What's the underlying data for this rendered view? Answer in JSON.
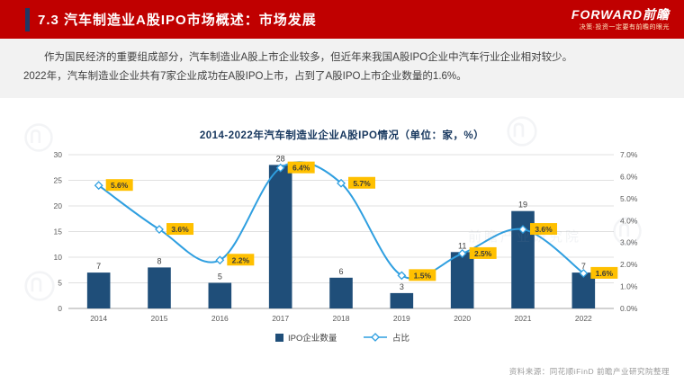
{
  "header": {
    "title": "7.3 汽车制造业A股IPO市场概述：市场发展",
    "brand": "FORWARD前瞻",
    "slogan": "决策·投资一定要有前瞻的眼光",
    "accent_color": "#c00000"
  },
  "intro": {
    "lines": [
      "作为国民经济的重要组成部分，汽车制造业A股上市企业较多，但近年来我国A股IPO企业中汽车行业企业相对较少。",
      "2022年，汽车制造业企业共有7家企业成功在A股IPO上市，占到了A股IPO上市企业数量的1.6%。"
    ]
  },
  "chart_data": {
    "type": "bar+line",
    "title": "2014-2022年汽车制造业企业A股IPO情况（单位：家，%）",
    "categories": [
      "2014",
      "2015",
      "2016",
      "2017",
      "2018",
      "2019",
      "2020",
      "2021",
      "2022"
    ],
    "series": [
      {
        "name": "IPO企业数量",
        "type": "bar",
        "axis": "left",
        "values": [
          7,
          8,
          5,
          28,
          6,
          3,
          11,
          19,
          7
        ],
        "color": "#1f4e79"
      },
      {
        "name": "占比",
        "type": "line",
        "axis": "right",
        "values": [
          5.6,
          3.6,
          2.2,
          6.4,
          5.7,
          1.5,
          2.5,
          3.6,
          1.6
        ],
        "labels": [
          "5.6%",
          "3.6%",
          "2.2%",
          "6.4%",
          "5.7%",
          "1.5%",
          "2.5%",
          "3.6%",
          "1.6%"
        ],
        "color": "#2f9fe0",
        "label_bg": "#ffc000"
      }
    ],
    "left_axis": {
      "min": 0,
      "max": 30,
      "step": 5,
      "ticks": [
        "0",
        "5",
        "10",
        "15",
        "20",
        "25",
        "30"
      ]
    },
    "right_axis": {
      "min": 0,
      "max": 7,
      "step": 1,
      "ticks": [
        "0.0%",
        "1.0%",
        "2.0%",
        "3.0%",
        "4.0%",
        "5.0%",
        "6.0%",
        "7.0%"
      ]
    },
    "legend": [
      "IPO企业数量",
      "占比"
    ],
    "legend_position": "bottom",
    "grid": true
  },
  "footer": {
    "source": "资料来源：同花顺iFinD 前瞻产业研究院整理"
  },
  "watermark": {
    "text": "前瞻产业研究院"
  }
}
